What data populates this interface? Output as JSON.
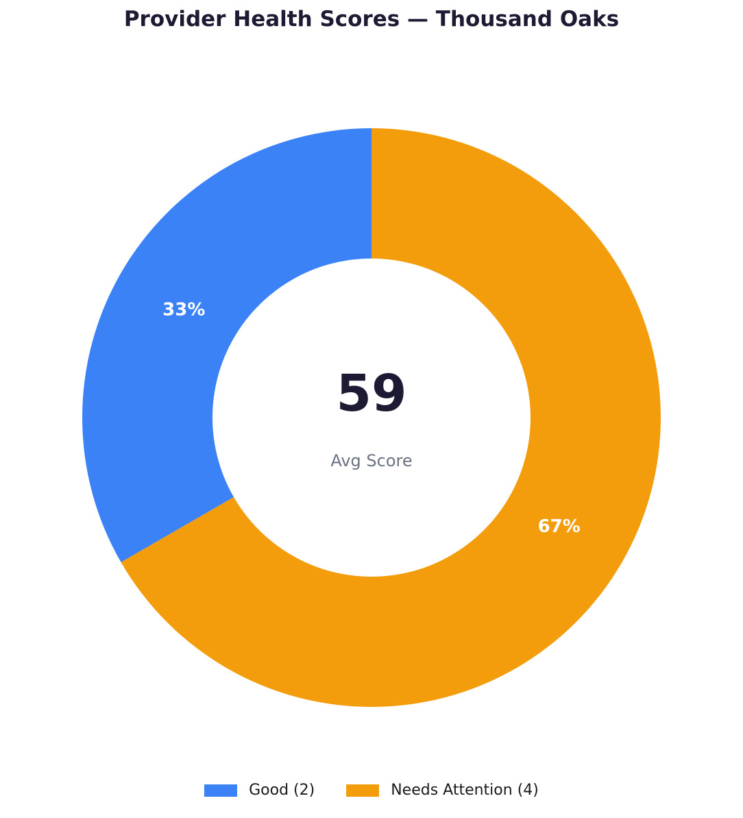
{
  "chart_data": {
    "type": "pie",
    "title": "Provider Health Scores — Thousand Oaks",
    "slices": [
      {
        "name": "Good",
        "legend_label": "Good (2)",
        "count": 2,
        "percent_label": "33%",
        "color": "#3b82f6"
      },
      {
        "name": "Needs Attention",
        "legend_label": "Needs Attention (4)",
        "count": 4,
        "percent_label": "67%",
        "color": "#f39c0c"
      }
    ],
    "center": {
      "value": "59",
      "caption": "Avg Score"
    },
    "legend_position": "bottom-center",
    "start": "top",
    "direction": "counterclockwise"
  }
}
